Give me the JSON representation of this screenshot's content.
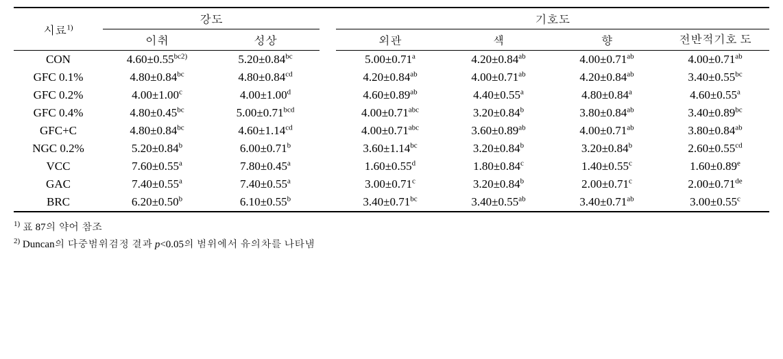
{
  "header": {
    "sample": "시료",
    "sample_sup": "1)",
    "group_intensity": "강도",
    "group_preference": "기호도",
    "intensity_cols": [
      "이취",
      "성상"
    ],
    "preference_cols": [
      "외관",
      "색",
      "향",
      "전반적기호\n도"
    ]
  },
  "rows": [
    {
      "label": "CON",
      "intensity": [
        {
          "v": "4.60±0.55",
          "s": "bc2)"
        },
        {
          "v": "5.20±0.84",
          "s": "bc"
        }
      ],
      "preference": [
        {
          "v": "5.00±0.71",
          "s": "a"
        },
        {
          "v": "4.20±0.84",
          "s": "ab"
        },
        {
          "v": "4.00±0.71",
          "s": "ab"
        },
        {
          "v": "4.00±0.71",
          "s": "ab"
        }
      ]
    },
    {
      "label": "GFC 0.1%",
      "intensity": [
        {
          "v": "4.80±0.84",
          "s": "bc"
        },
        {
          "v": "4.80±0.84",
          "s": "cd"
        }
      ],
      "preference": [
        {
          "v": "4.20±0.84",
          "s": "ab"
        },
        {
          "v": "4.00±0.71",
          "s": "ab"
        },
        {
          "v": "4.20±0.84",
          "s": "ab"
        },
        {
          "v": "3.40±0.55",
          "s": "bc"
        }
      ]
    },
    {
      "label": "GFC 0.2%",
      "intensity": [
        {
          "v": "4.00±1.00",
          "s": "c"
        },
        {
          "v": "4.00±1.00",
          "s": "d"
        }
      ],
      "preference": [
        {
          "v": "4.60±0.89",
          "s": "ab"
        },
        {
          "v": "4.40±0.55",
          "s": "a"
        },
        {
          "v": "4.80±0.84",
          "s": "a"
        },
        {
          "v": "4.60±0.55",
          "s": "a"
        }
      ]
    },
    {
      "label": "GFC 0.4%",
      "intensity": [
        {
          "v": "4.80±0.45",
          "s": "bc"
        },
        {
          "v": "5.00±0.71",
          "s": "bcd"
        }
      ],
      "preference": [
        {
          "v": "4.00±0.71",
          "s": "abc"
        },
        {
          "v": "3.20±0.84",
          "s": "b"
        },
        {
          "v": "3.80±0.84",
          "s": "ab"
        },
        {
          "v": "3.40±0.89",
          "s": "bc"
        }
      ]
    },
    {
      "label": "GFC+C",
      "intensity": [
        {
          "v": "4.80±0.84",
          "s": "bc"
        },
        {
          "v": "4.60±1.14",
          "s": "cd"
        }
      ],
      "preference": [
        {
          "v": "4.00±0.71",
          "s": "abc"
        },
        {
          "v": "3.60±0.89",
          "s": "ab"
        },
        {
          "v": "4.00±0.71",
          "s": "ab"
        },
        {
          "v": "3.80±0.84",
          "s": "ab"
        }
      ]
    },
    {
      "label": "NGC 0.2%",
      "intensity": [
        {
          "v": "5.20±0.84",
          "s": "b"
        },
        {
          "v": "6.00±0.71",
          "s": "b"
        }
      ],
      "preference": [
        {
          "v": "3.60±1.14",
          "s": "bc"
        },
        {
          "v": "3.20±0.84",
          "s": "b"
        },
        {
          "v": "3.20±0.84",
          "s": "b"
        },
        {
          "v": "2.60±0.55",
          "s": "cd"
        }
      ]
    },
    {
      "label": "VCC",
      "intensity": [
        {
          "v": "7.60±0.55",
          "s": "a"
        },
        {
          "v": "7.80±0.45",
          "s": "a"
        }
      ],
      "preference": [
        {
          "v": "1.60±0.55",
          "s": "d"
        },
        {
          "v": "1.80±0.84",
          "s": "c"
        },
        {
          "v": "1.40±0.55",
          "s": "c"
        },
        {
          "v": "1.60±0.89",
          "s": "e"
        }
      ]
    },
    {
      "label": "GAC",
      "intensity": [
        {
          "v": "7.40±0.55",
          "s": "a"
        },
        {
          "v": "7.40±0.55",
          "s": "a"
        }
      ],
      "preference": [
        {
          "v": "3.00±0.71",
          "s": "c"
        },
        {
          "v": "3.20±0.84",
          "s": "b"
        },
        {
          "v": "2.00±0.71",
          "s": "c"
        },
        {
          "v": "2.00±0.71",
          "s": "de"
        }
      ]
    },
    {
      "label": "BRC",
      "intensity": [
        {
          "v": "6.20±0.50",
          "s": "b"
        },
        {
          "v": "6.10±0.55",
          "s": "b"
        }
      ],
      "preference": [
        {
          "v": "3.40±0.71",
          "s": "bc"
        },
        {
          "v": "3.40±0.55",
          "s": "ab"
        },
        {
          "v": "3.40±0.71",
          "s": "ab"
        },
        {
          "v": "3.00±0.55",
          "s": "c"
        }
      ]
    }
  ],
  "footnotes": {
    "f1_sup": "1)",
    "f1_text": " 표 87의 약어 참조",
    "f2_sup": "2)",
    "f2_text_a": " Duncan의 다중범위검정 결과 ",
    "f2_p": "p",
    "f2_text_b": "<0.05의 범위에서 유의차를 나타냄"
  }
}
